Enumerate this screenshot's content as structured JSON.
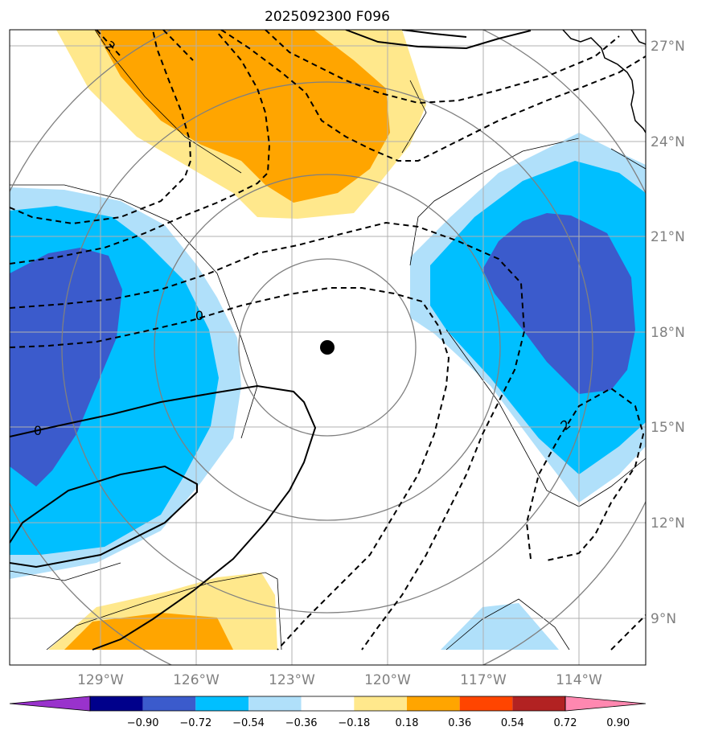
{
  "chart_data": {
    "type": "map-contour",
    "title": "2025092300 F096",
    "center_marker": {
      "lon": -121.8,
      "lat": 17.5
    },
    "lon_ticks": [
      "129°W",
      "126°W",
      "123°W",
      "120°W",
      "117°W",
      "114°W"
    ],
    "lat_ticks": [
      "27°N",
      "24°N",
      "21°N",
      "18°N",
      "15°N",
      "12°N",
      "9°N"
    ],
    "lon_values": [
      -129,
      -126,
      -123,
      -120,
      -117,
      -114
    ],
    "lat_values": [
      27,
      24,
      21,
      18,
      15,
      12,
      9
    ],
    "lon_range": [
      -131.9,
      -111.9
    ],
    "lat_range": [
      7.9,
      27.5
    ],
    "colorbar": {
      "levels": [
        "−0.90",
        "−0.72",
        "−0.54",
        "−0.36",
        "−0.18",
        "0.18",
        "0.36",
        "0.54",
        "0.72",
        "0.90"
      ],
      "colors": [
        "#9932cc",
        "#00008b",
        "#3b5bcc",
        "#00bfff",
        "#b0e0fa",
        "#ffffff",
        "#ffe88c",
        "#ffa500",
        "#ff4500",
        "#b22222",
        "#ff88b0"
      ],
      "extend": "both"
    },
    "contour_labels": [
      "2",
      "0",
      "0",
      "2"
    ]
  }
}
